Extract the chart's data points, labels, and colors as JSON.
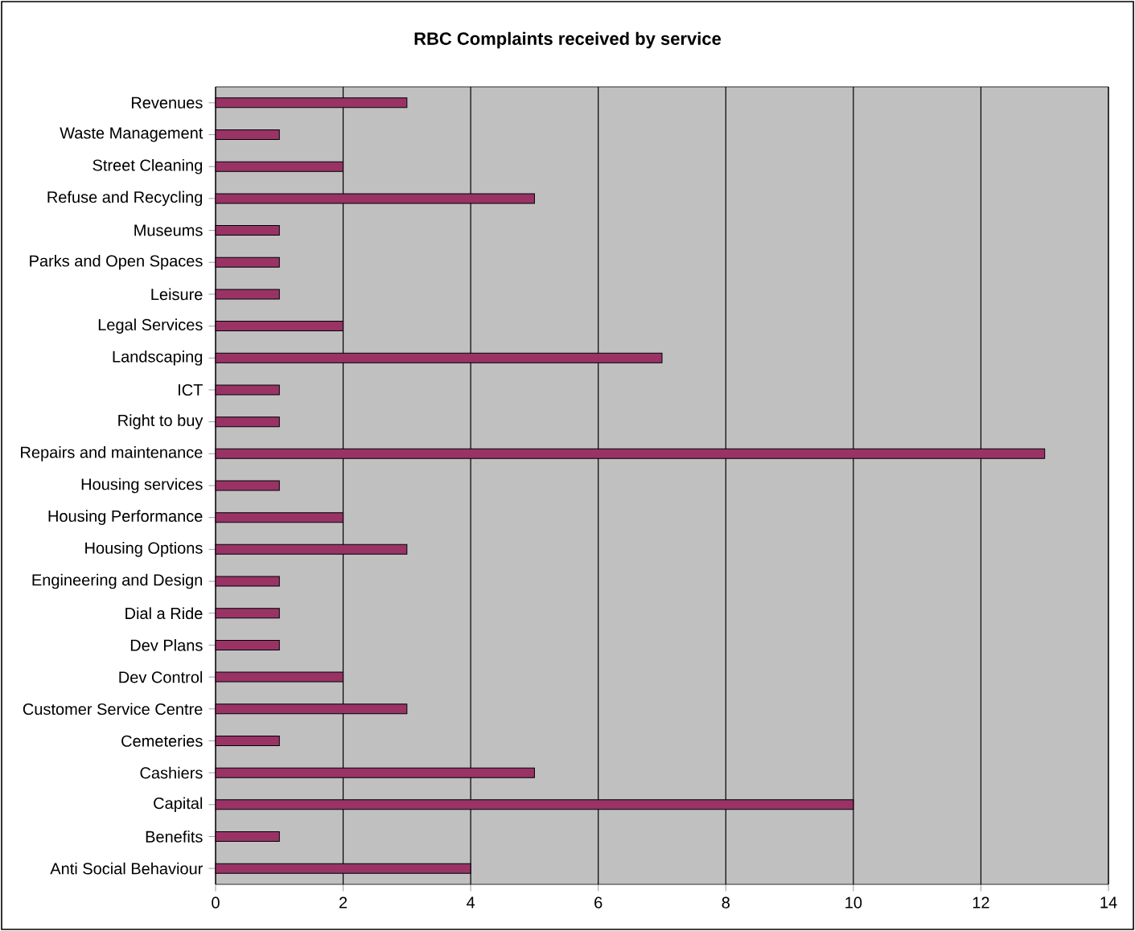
{
  "chart_data": {
    "type": "bar",
    "orientation": "horizontal",
    "title": "RBC Complaints received by service",
    "categories": [
      "Revenues",
      "Waste Management",
      "Street Cleaning",
      "Refuse and Recycling",
      "Museums",
      "Parks and Open Spaces",
      "Leisure",
      "Legal Services",
      "Landscaping",
      "ICT",
      "Right to buy",
      "Repairs and maintenance",
      "Housing services",
      "Housing Performance",
      "Housing Options",
      "Engineering and Design",
      "Dial a Ride",
      "Dev Plans",
      "Dev Control",
      "Customer Service Centre",
      "Cemeteries",
      "Cashiers",
      "Capital",
      "Benefits",
      "Anti Social Behaviour"
    ],
    "values": [
      3,
      1,
      2,
      5,
      1,
      1,
      1,
      2,
      7,
      1,
      1,
      13,
      1,
      2,
      3,
      1,
      1,
      1,
      2,
      3,
      1,
      5,
      10,
      1,
      4
    ],
    "color": "#993366",
    "xlim": [
      0,
      14
    ],
    "xticks": [
      0,
      2,
      4,
      6,
      8,
      10,
      12,
      14
    ],
    "grid": "x"
  }
}
